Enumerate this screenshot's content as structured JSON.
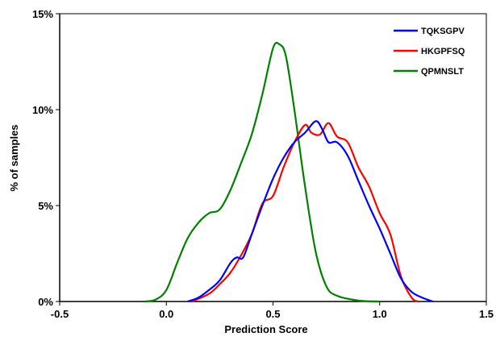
{
  "chart_data": {
    "type": "line",
    "title": "",
    "xlabel": "Prediction Score",
    "ylabel": "% of samples",
    "xlim": [
      -0.5,
      1.5
    ],
    "ylim": [
      0,
      15
    ],
    "x_ticks": [
      "-0.5",
      "0.0",
      "0.5",
      "1.0",
      "1.5"
    ],
    "y_ticks": [
      "0%",
      "5%",
      "10%",
      "15%"
    ],
    "grid": false,
    "legend_position": "top-right",
    "series": [
      {
        "name": "TQKSGPV",
        "color": "#0000ff",
        "points": [
          [
            0.1,
            0.0
          ],
          [
            0.15,
            0.2
          ],
          [
            0.2,
            0.6
          ],
          [
            0.25,
            1.1
          ],
          [
            0.3,
            2.0
          ],
          [
            0.33,
            2.3
          ],
          [
            0.36,
            2.3
          ],
          [
            0.4,
            3.5
          ],
          [
            0.45,
            5.0
          ],
          [
            0.5,
            6.4
          ],
          [
            0.55,
            7.5
          ],
          [
            0.6,
            8.3
          ],
          [
            0.65,
            8.8
          ],
          [
            0.7,
            9.4
          ],
          [
            0.73,
            9.0
          ],
          [
            0.76,
            8.3
          ],
          [
            0.8,
            8.3
          ],
          [
            0.85,
            7.6
          ],
          [
            0.9,
            6.3
          ],
          [
            0.95,
            5.0
          ],
          [
            1.0,
            3.8
          ],
          [
            1.05,
            2.5
          ],
          [
            1.1,
            1.2
          ],
          [
            1.15,
            0.5
          ],
          [
            1.2,
            0.2
          ],
          [
            1.25,
            0.0
          ]
        ]
      },
      {
        "name": "HKGPFSQ",
        "color": "#ff0000",
        "points": [
          [
            0.12,
            0.0
          ],
          [
            0.2,
            0.4
          ],
          [
            0.25,
            0.9
          ],
          [
            0.3,
            1.5
          ],
          [
            0.35,
            2.4
          ],
          [
            0.4,
            3.5
          ],
          [
            0.45,
            5.1
          ],
          [
            0.5,
            5.5
          ],
          [
            0.55,
            7.0
          ],
          [
            0.6,
            8.3
          ],
          [
            0.65,
            9.2
          ],
          [
            0.68,
            8.8
          ],
          [
            0.72,
            8.7
          ],
          [
            0.76,
            9.3
          ],
          [
            0.8,
            8.6
          ],
          [
            0.85,
            8.3
          ],
          [
            0.9,
            7.0
          ],
          [
            0.95,
            6.0
          ],
          [
            1.0,
            4.6
          ],
          [
            1.05,
            3.5
          ],
          [
            1.1,
            1.3
          ],
          [
            1.15,
            0.2
          ],
          [
            1.18,
            0.0
          ]
        ]
      },
      {
        "name": "QPMNSLT",
        "color": "#008000",
        "points": [
          [
            -0.1,
            0.0
          ],
          [
            -0.05,
            0.1
          ],
          [
            0.0,
            0.6
          ],
          [
            0.05,
            2.0
          ],
          [
            0.1,
            3.3
          ],
          [
            0.15,
            4.1
          ],
          [
            0.2,
            4.6
          ],
          [
            0.25,
            4.8
          ],
          [
            0.3,
            5.8
          ],
          [
            0.35,
            7.2
          ],
          [
            0.4,
            8.7
          ],
          [
            0.45,
            10.8
          ],
          [
            0.5,
            13.2
          ],
          [
            0.53,
            13.4
          ],
          [
            0.56,
            12.8
          ],
          [
            0.6,
            10.0
          ],
          [
            0.65,
            6.0
          ],
          [
            0.7,
            2.6
          ],
          [
            0.75,
            0.8
          ],
          [
            0.8,
            0.3
          ],
          [
            0.9,
            0.05
          ],
          [
            1.0,
            0.0
          ]
        ]
      }
    ]
  }
}
